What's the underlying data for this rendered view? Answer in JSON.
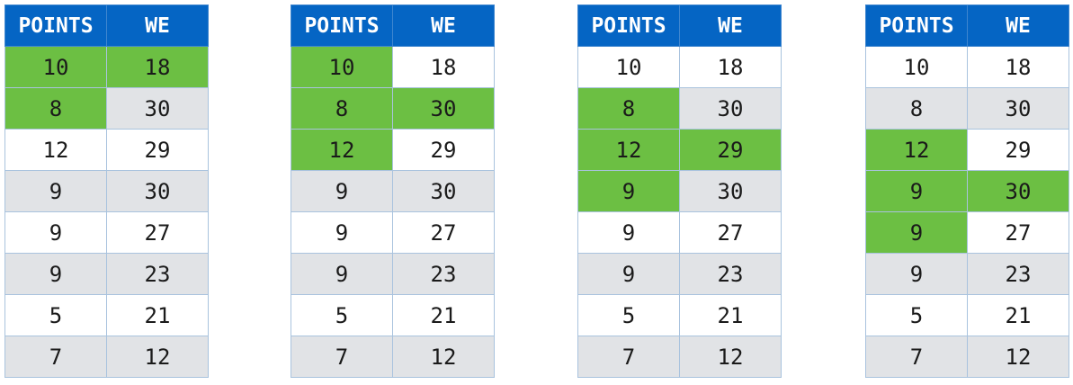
{
  "headers": [
    "POINTS",
    "WE"
  ],
  "colors": {
    "header": "#0565c4",
    "highlight": "#6cbf43",
    "stripe": "#e1e3e6"
  },
  "tables": [
    {
      "rows": [
        [
          "10",
          "18"
        ],
        [
          "8",
          "30"
        ],
        [
          "12",
          "29"
        ],
        [
          "9",
          "30"
        ],
        [
          "9",
          "27"
        ],
        [
          "9",
          "23"
        ],
        [
          "5",
          "21"
        ],
        [
          "7",
          "12"
        ]
      ],
      "highlight_points_rows": [
        0,
        1
      ],
      "highlight_we_row": 0
    },
    {
      "rows": [
        [
          "10",
          "18"
        ],
        [
          "8",
          "30"
        ],
        [
          "12",
          "29"
        ],
        [
          "9",
          "30"
        ],
        [
          "9",
          "27"
        ],
        [
          "9",
          "23"
        ],
        [
          "5",
          "21"
        ],
        [
          "7",
          "12"
        ]
      ],
      "highlight_points_rows": [
        0,
        1,
        2
      ],
      "highlight_we_row": 1
    },
    {
      "rows": [
        [
          "10",
          "18"
        ],
        [
          "8",
          "30"
        ],
        [
          "12",
          "29"
        ],
        [
          "9",
          "30"
        ],
        [
          "9",
          "27"
        ],
        [
          "9",
          "23"
        ],
        [
          "5",
          "21"
        ],
        [
          "7",
          "12"
        ]
      ],
      "highlight_points_rows": [
        1,
        2,
        3
      ],
      "highlight_we_row": 2
    },
    {
      "rows": [
        [
          "10",
          "18"
        ],
        [
          "8",
          "30"
        ],
        [
          "12",
          "29"
        ],
        [
          "9",
          "30"
        ],
        [
          "9",
          "27"
        ],
        [
          "9",
          "23"
        ],
        [
          "5",
          "21"
        ],
        [
          "7",
          "12"
        ]
      ],
      "highlight_points_rows": [
        2,
        3,
        4
      ],
      "highlight_we_row": 3
    }
  ]
}
